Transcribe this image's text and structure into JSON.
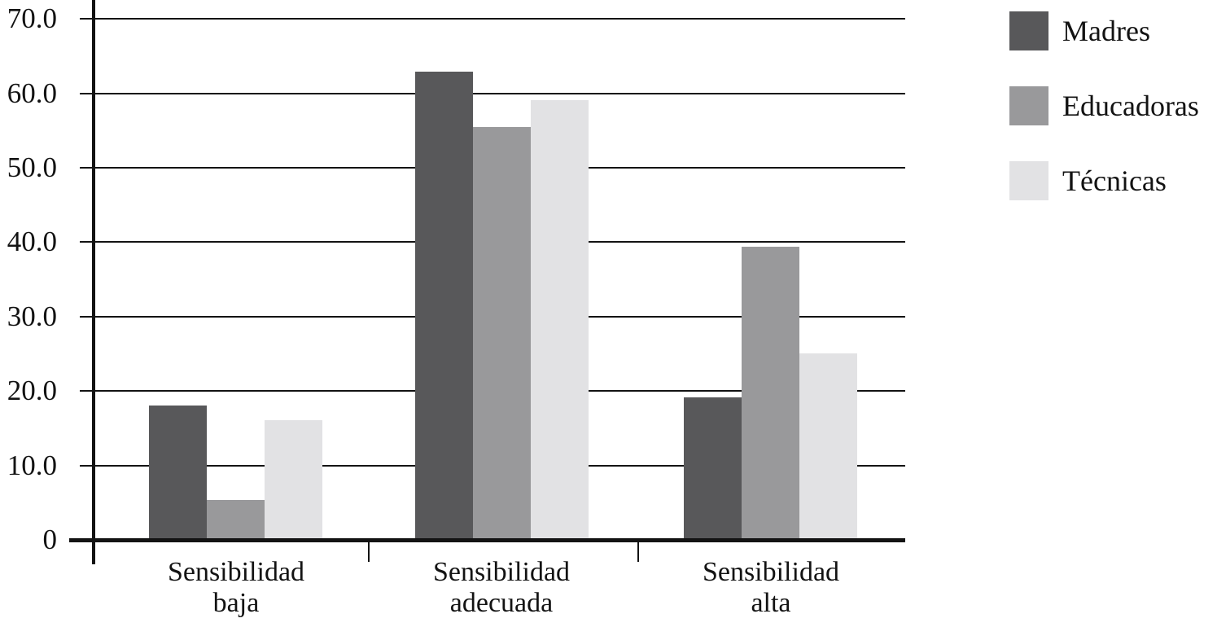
{
  "figure": {
    "background": "#ffffff",
    "text_color": "#131313",
    "gridline_color": "#131313"
  },
  "chart_data": {
    "type": "bar",
    "title": "",
    "xlabel": "",
    "ylabel": "",
    "categories": [
      "Sensibilidad baja",
      "Sensibilidad adecuada",
      "Sensibilidad alta"
    ],
    "series": [
      {
        "name": "Madres",
        "color": "#58585a",
        "values": [
          18.1,
          62.9,
          19.1
        ]
      },
      {
        "name": "Educadoras",
        "color": "#99999b",
        "values": [
          5.4,
          55.5,
          39.4
        ]
      },
      {
        "name": "Técnicas",
        "color": "#e2e2e4",
        "values": [
          16.1,
          59.1,
          25.0
        ]
      }
    ],
    "y_ticks": [
      {
        "label": "70.0",
        "value": 70
      },
      {
        "label": "60.0",
        "value": 60
      },
      {
        "label": "50.0",
        "value": 50
      },
      {
        "label": "40.0",
        "value": 40
      },
      {
        "label": "30.0",
        "value": 30
      },
      {
        "label": "20.0",
        "value": 20
      },
      {
        "label": "10.0",
        "value": 10
      },
      {
        "label": "0",
        "value": 0
      }
    ],
    "ylim": [
      0,
      72.5
    ],
    "grid": true,
    "legend_position": "top-right"
  }
}
